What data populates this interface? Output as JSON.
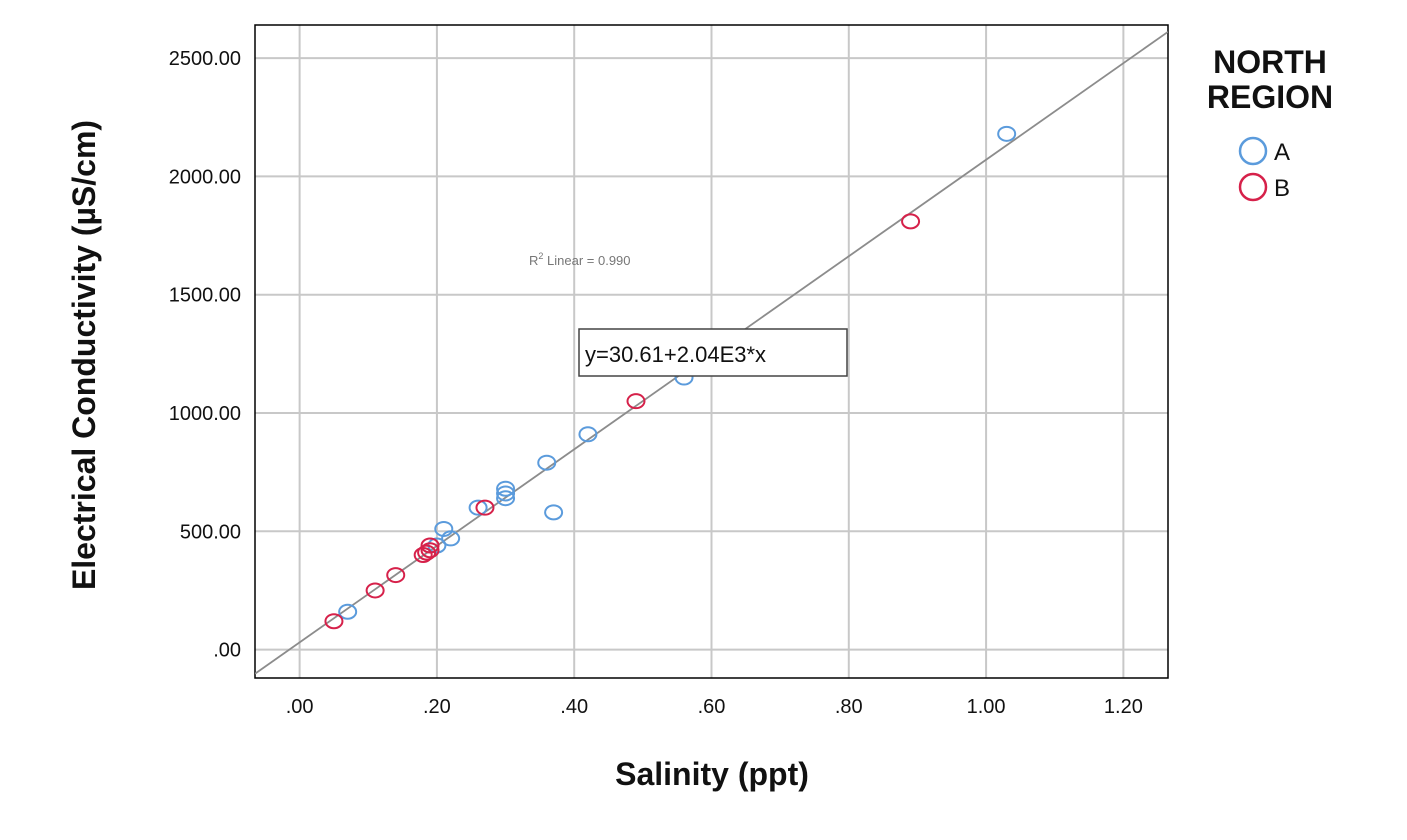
{
  "chart_data": {
    "type": "scatter",
    "title": "",
    "xlabel": "Salinity (ppt)",
    "ylabel": "Electrical Conductivity (µS/cm)",
    "xlim": [
      -0.065,
      1.265
    ],
    "ylim": [
      -120,
      2640
    ],
    "x_ticks": [
      0,
      0.2,
      0.4,
      0.6,
      0.8,
      1.0,
      1.2
    ],
    "x_tick_labels": [
      ".00",
      ".20",
      ".40",
      ".60",
      ".80",
      "1.00",
      "1.20"
    ],
    "y_ticks": [
      0,
      500,
      1000,
      1500,
      2000,
      2500
    ],
    "y_tick_labels": [
      ".00",
      "500.00",
      "1000.00",
      "1500.00",
      "2000.00",
      "2500.00"
    ],
    "grid": true,
    "legend": {
      "title_line1": "NORTH",
      "title_line2": "REGION",
      "placement": "right-top"
    },
    "series": [
      {
        "name": "A",
        "color": "#5b9bdc",
        "points": [
          {
            "x": 0.07,
            "y": 160
          },
          {
            "x": 0.2,
            "y": 440
          },
          {
            "x": 0.21,
            "y": 510
          },
          {
            "x": 0.22,
            "y": 470
          },
          {
            "x": 0.26,
            "y": 600
          },
          {
            "x": 0.3,
            "y": 680
          },
          {
            "x": 0.3,
            "y": 660
          },
          {
            "x": 0.3,
            "y": 640
          },
          {
            "x": 0.36,
            "y": 790
          },
          {
            "x": 0.37,
            "y": 580
          },
          {
            "x": 0.42,
            "y": 910
          },
          {
            "x": 0.56,
            "y": 1150
          },
          {
            "x": 1.03,
            "y": 2180
          }
        ]
      },
      {
        "name": "B",
        "color": "#d6214a",
        "points": [
          {
            "x": 0.05,
            "y": 120
          },
          {
            "x": 0.11,
            "y": 250
          },
          {
            "x": 0.14,
            "y": 315
          },
          {
            "x": 0.18,
            "y": 400
          },
          {
            "x": 0.185,
            "y": 410
          },
          {
            "x": 0.19,
            "y": 420
          },
          {
            "x": 0.19,
            "y": 440
          },
          {
            "x": 0.27,
            "y": 600
          },
          {
            "x": 0.49,
            "y": 1050
          },
          {
            "x": 0.89,
            "y": 1810
          }
        ]
      }
    ],
    "fit_line": {
      "intercept": 30.61,
      "slope": 2040,
      "color": "#8c8c8c",
      "equation_label": "y=30.61+2.04E3*x",
      "r2_prefix": "R",
      "r2_superscript": "2",
      "r2_suffix": " Linear = 0.990"
    }
  }
}
